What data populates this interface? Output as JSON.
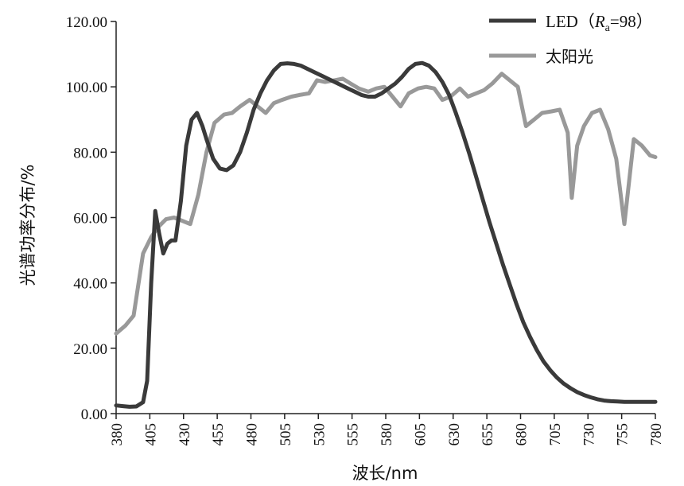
{
  "chart_data": {
    "type": "line",
    "title": "",
    "xlabel": "波长/nm",
    "ylabel": "光谱功率分布/%",
    "xlim": [
      380,
      780
    ],
    "ylim": [
      0,
      120
    ],
    "x_ticks": [
      380,
      405,
      430,
      455,
      480,
      505,
      530,
      555,
      580,
      605,
      630,
      655,
      680,
      705,
      730,
      755,
      780
    ],
    "x_tick_labels": [
      "380",
      "405",
      "430",
      "455",
      "480",
      "505",
      "530",
      "555",
      "580",
      "605",
      "630",
      "655",
      "680",
      "705",
      "730",
      "755",
      "780"
    ],
    "y_ticks": [
      0,
      20,
      40,
      60,
      80,
      100,
      120
    ],
    "y_tick_labels": [
      "0.00",
      "20.00",
      "40.00",
      "60.00",
      "80.00",
      "100.00",
      "120.00"
    ],
    "legend_position": "top-right",
    "grid": false,
    "series": [
      {
        "name": "LED（Ra=98）",
        "legend_main": "LED（",
        "legend_italic": "R",
        "legend_sub": "a",
        "legend_tail": "=98）",
        "color": "#3a3a3a",
        "x": [
          380,
          385,
          390,
          395,
          400,
          403,
          406,
          409,
          412,
          415,
          418,
          421,
          424,
          428,
          432,
          436,
          440,
          444,
          447,
          452,
          457,
          462,
          467,
          472,
          477,
          482,
          487,
          492,
          497,
          502,
          507,
          512,
          517,
          522,
          527,
          532,
          537,
          542,
          547,
          552,
          557,
          562,
          567,
          572,
          577,
          582,
          587,
          592,
          597,
          602,
          607,
          612,
          617,
          622,
          627,
          632,
          637,
          642,
          647,
          652,
          657,
          662,
          667,
          672,
          677,
          682,
          687,
          692,
          697,
          702,
          707,
          712,
          717,
          722,
          727,
          732,
          737,
          742,
          747,
          752,
          757,
          762,
          767,
          772,
          777,
          780
        ],
        "y": [
          2.5,
          2.3,
          2.1,
          2.2,
          3.5,
          10,
          40,
          62,
          55,
          49,
          52,
          53,
          53,
          65,
          82,
          90,
          92,
          88,
          84,
          78,
          75,
          74.5,
          76,
          80,
          86,
          93,
          98,
          102,
          105,
          107,
          107.2,
          107,
          106.5,
          105.5,
          104.5,
          103.5,
          102.5,
          101.5,
          100.5,
          99.5,
          98.5,
          97.5,
          97,
          97,
          98,
          99.5,
          101,
          103,
          105.5,
          107,
          107.3,
          106.5,
          104.5,
          101.5,
          97.5,
          92,
          86,
          79.5,
          72.5,
          65.5,
          58.5,
          52,
          45.5,
          39.5,
          33.5,
          28,
          23.5,
          19.5,
          16,
          13.3,
          11,
          9.2,
          7.8,
          6.6,
          5.7,
          5,
          4.4,
          4,
          3.8,
          3.7,
          3.6,
          3.6,
          3.6,
          3.6,
          3.6,
          3.6
        ]
      },
      {
        "name": "太阳光",
        "legend_label": "太阳光",
        "color": "#999999",
        "x": [
          380,
          387,
          393,
          400,
          406,
          411,
          417,
          423,
          429,
          435,
          441,
          447,
          453,
          460,
          466,
          472,
          479,
          485,
          491,
          497,
          503,
          510,
          516,
          523,
          529,
          535,
          542,
          548,
          554,
          560,
          567,
          573,
          579,
          585,
          591,
          597,
          604,
          610,
          616,
          622,
          628,
          635,
          641,
          647,
          653,
          659,
          666,
          672,
          678,
          684,
          690,
          696,
          703,
          709,
          715,
          718,
          722,
          727,
          733,
          739,
          745,
          751,
          757,
          764,
          770,
          776,
          780
        ],
        "y": [
          24.5,
          27,
          30,
          49,
          54,
          57,
          59.5,
          60,
          59,
          58,
          67,
          80,
          89,
          91.5,
          92,
          94,
          96,
          94,
          92,
          95,
          96,
          97,
          97.5,
          98,
          102,
          101.5,
          102,
          102.5,
          101,
          99.5,
          98.5,
          99.5,
          100,
          97,
          94,
          98,
          99.5,
          100,
          99.5,
          96,
          97,
          99.5,
          97,
          98,
          99,
          101,
          104,
          102,
          100,
          88,
          90,
          92,
          92.5,
          93,
          86,
          66,
          82,
          88,
          92,
          93,
          87,
          78,
          58,
          84,
          82,
          79,
          78.5
        ]
      }
    ]
  }
}
